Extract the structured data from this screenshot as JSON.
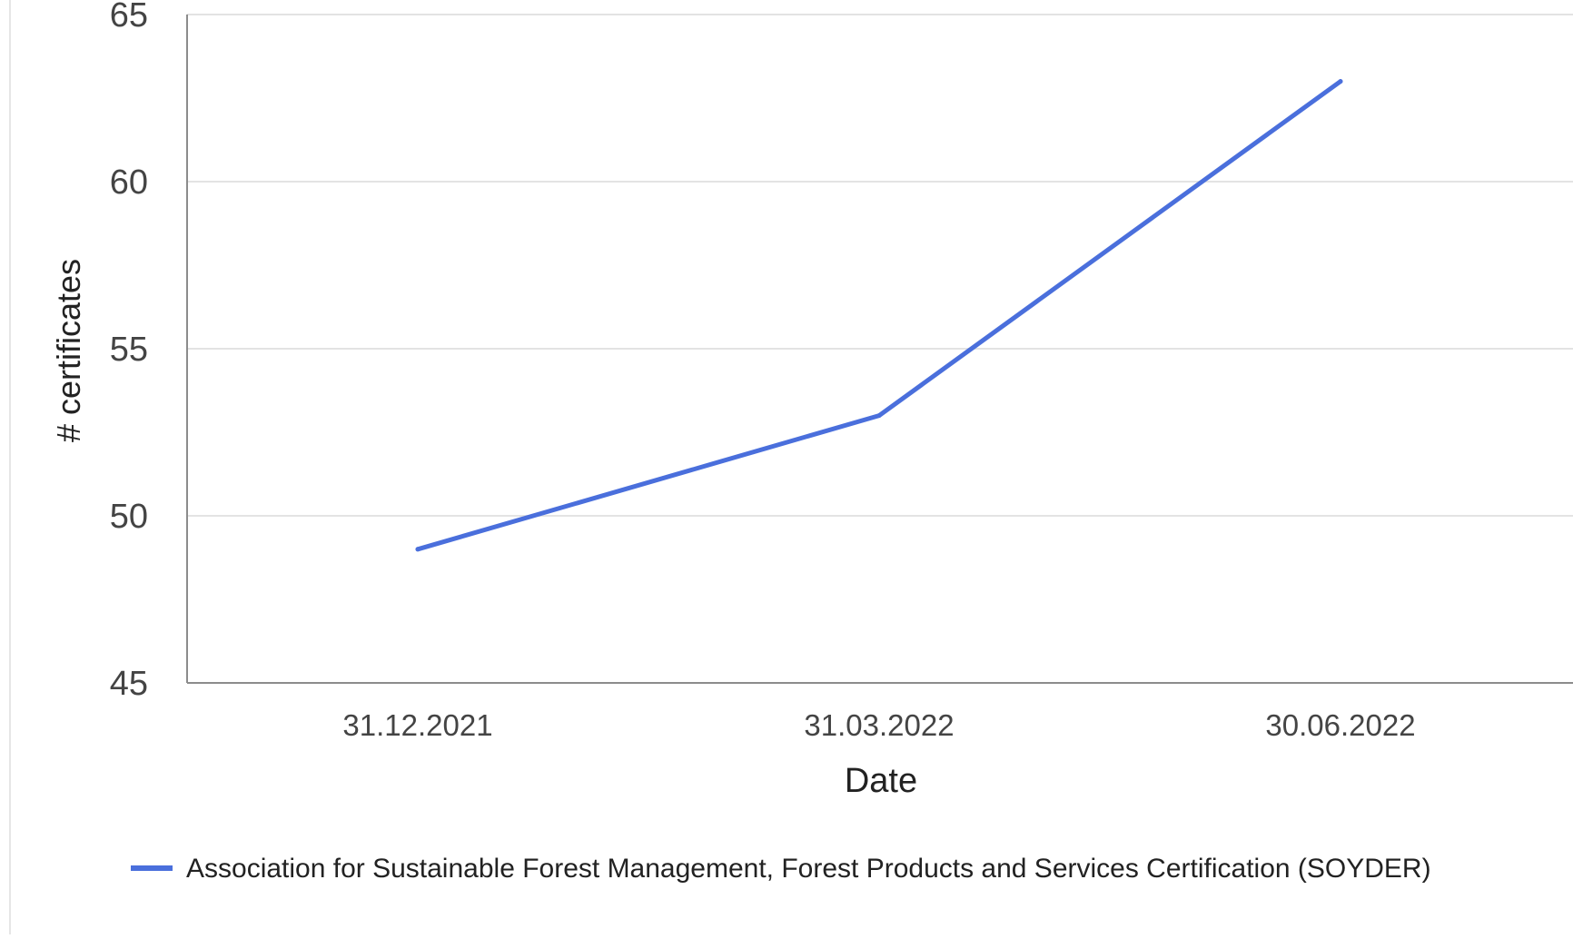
{
  "chart_data": {
    "type": "line",
    "title": "",
    "xlabel": "Date",
    "ylabel": "# certificates",
    "categories": [
      "31.12.2021",
      "31.03.2022",
      "30.06.2022"
    ],
    "series": [
      {
        "name": "Association for Sustainable Forest Management, Forest Products and Services Certification (SOYDER)",
        "values": [
          49,
          53,
          63
        ],
        "color": "#4a6fdc"
      }
    ],
    "ylim": [
      45,
      65
    ],
    "yticks": [
      "45",
      "50",
      "55",
      "60",
      "65"
    ],
    "grid": true,
    "legend_position": "bottom"
  }
}
